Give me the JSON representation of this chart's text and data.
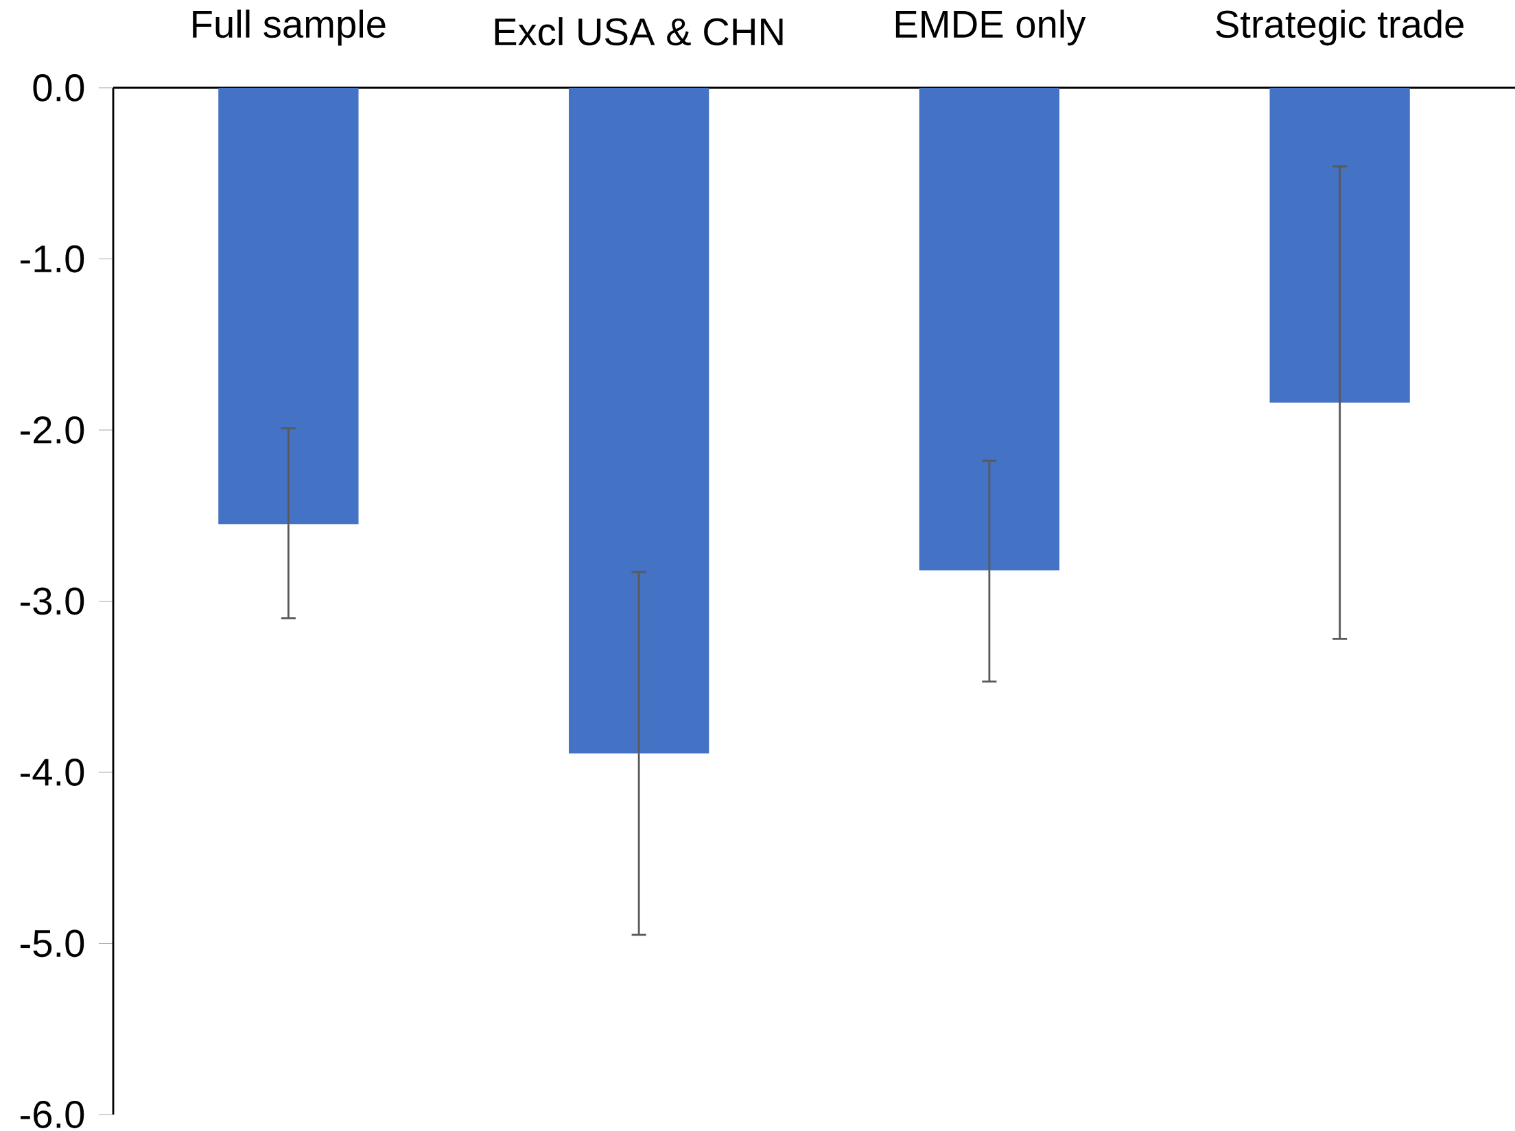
{
  "chart_data": {
    "type": "bar",
    "categories": [
      "Full sample",
      "Excl USA & CHN",
      "EMDE only",
      "Strategic trade"
    ],
    "values": [
      -2.55,
      -3.89,
      -2.82,
      -1.84
    ],
    "errors": [
      [
        -3.1,
        -1.99
      ],
      [
        -4.95,
        -2.83
      ],
      [
        -3.47,
        -2.18
      ],
      [
        -3.22,
        -0.46
      ]
    ],
    "color": "#4472c4",
    "ylim": [
      -6,
      0
    ],
    "yticks": [
      {
        "value": 0,
        "label": "0.0"
      },
      {
        "value": -1,
        "label": "-1.0"
      },
      {
        "value": -2,
        "label": "-2.0"
      },
      {
        "value": -3,
        "label": "-3.0"
      },
      {
        "value": -4,
        "label": "-4.0"
      },
      {
        "value": -5,
        "label": "-5.0"
      },
      {
        "value": -6,
        "label": "-6.0"
      }
    ]
  }
}
